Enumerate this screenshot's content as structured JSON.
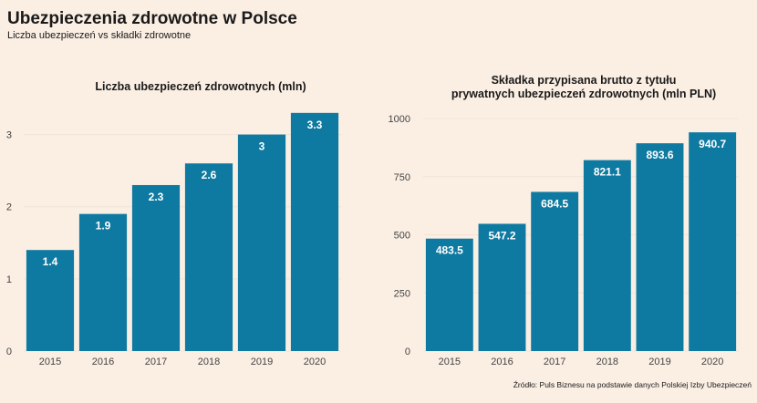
{
  "header": {
    "title": "Ubezpieczenia zdrowotne w Polsce",
    "subtitle": "Liczba ubezpieczeń vs składki zdrowotne"
  },
  "footer": {
    "source": "Źródło: Puls Biznesu na podstawie danych Polskiej Izby Ubezpieczeń"
  },
  "colors": {
    "background": "#fbefe4",
    "bar": "#0f7aa1",
    "grid": "#f1e3d6",
    "bar_label": "#ffffff"
  },
  "chart_data": [
    {
      "type": "bar",
      "title": "Liczba ubezpieczeń zdrowotnych (mln)",
      "categories": [
        "2015",
        "2016",
        "2017",
        "2018",
        "2019",
        "2020"
      ],
      "values": [
        1.4,
        1.9,
        2.3,
        2.6,
        3,
        3.3
      ],
      "value_labels": [
        "1.4",
        "1.9",
        "2.3",
        "2.6",
        "3",
        "3.3"
      ],
      "yticks": [
        0,
        1,
        2,
        3
      ],
      "ytick_labels": [
        "0",
        "1",
        "2",
        "3"
      ],
      "ylim": [
        0,
        3.5
      ],
      "grid": true
    },
    {
      "type": "bar",
      "title": [
        "Składka przypisana brutto z tytułu",
        "prywatnych ubezpieczeń zdrowotnych (mln PLN)"
      ],
      "categories": [
        "2015",
        "2016",
        "2017",
        "2018",
        "2019",
        "2020"
      ],
      "values": [
        483.5,
        547.2,
        684.5,
        821.1,
        893.6,
        940.7
      ],
      "value_labels": [
        "483.5",
        "547.2",
        "684.5",
        "821.1",
        "893.6",
        "940.7"
      ],
      "yticks": [
        0,
        250,
        500,
        750,
        1000
      ],
      "ytick_labels": [
        "0",
        "250",
        "500",
        "750",
        "1000"
      ],
      "ylim": [
        0,
        1000
      ],
      "grid": true
    }
  ]
}
